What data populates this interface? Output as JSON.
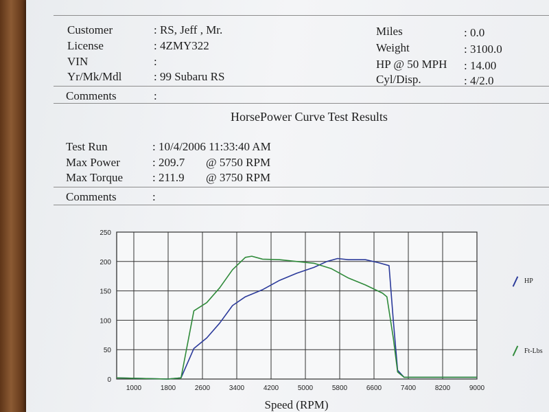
{
  "header": {
    "customer_label": "Customer",
    "customer_value": ": RS, Jeff  , Mr.",
    "license_label": "License",
    "license_value": ": 4ZMY322",
    "vin_label": "VIN",
    "vin_value": ":",
    "vehicle_label": "Yr/Mk/Mdl",
    "vehicle_value": ": 99 Subaru RS",
    "miles_label": "Miles",
    "miles_value": ": 0.0",
    "weight_label": "Weight",
    "weight_value": ": 3100.0",
    "hp50_label": "HP @ 50 MPH",
    "hp50_value": ": 14.00",
    "cyl_label": "Cyl/Disp.",
    "cyl_value": ": 4/2.0",
    "comments_label": "Comments",
    "comments_value": ":"
  },
  "results": {
    "title": "HorsePower Curve Test Results",
    "test_run_label": "Test Run",
    "test_run_value": ": 10/4/2006 11:33:40 AM",
    "max_power_label": "Max Power",
    "max_power_value": ": 209.7",
    "max_power_rpm": "@ 5750  RPM",
    "max_torque_label": "Max Torque",
    "max_torque_value": ": 211.9",
    "max_torque_rpm": "@ 3750  RPM",
    "comments_label": "Comments",
    "comments_value": ":"
  },
  "chart_data": {
    "type": "line",
    "title": "",
    "xlabel": "Speed (RPM)",
    "ylabel": "",
    "xlim": [
      600,
      9000
    ],
    "ylim": [
      0,
      250
    ],
    "x_ticks": [
      "1000",
      "1800",
      "2600",
      "3400",
      "4200",
      "5000",
      "5800",
      "6600",
      "7400",
      "8200",
      "9000"
    ],
    "y_ticks": [
      "0",
      "50",
      "100",
      "150",
      "200",
      "250"
    ],
    "grid": true,
    "legend_position": "right",
    "series": [
      {
        "name": "HP",
        "color": "#2b3a9a",
        "points": [
          [
            600,
            2
          ],
          [
            1800,
            0
          ],
          [
            2100,
            2
          ],
          [
            2400,
            52
          ],
          [
            2700,
            70
          ],
          [
            3000,
            95
          ],
          [
            3300,
            125
          ],
          [
            3600,
            140
          ],
          [
            4000,
            152
          ],
          [
            4400,
            168
          ],
          [
            4800,
            180
          ],
          [
            5200,
            190
          ],
          [
            5500,
            200
          ],
          [
            5750,
            205
          ],
          [
            6000,
            203
          ],
          [
            6400,
            203
          ],
          [
            6700,
            198
          ],
          [
            6950,
            193
          ],
          [
            7050,
            100
          ],
          [
            7150,
            15
          ],
          [
            7300,
            3
          ],
          [
            8200,
            3
          ],
          [
            9000,
            3
          ]
        ]
      },
      {
        "name": "Ft-Lbs",
        "color": "#2f8a3a",
        "points": [
          [
            600,
            2
          ],
          [
            1800,
            0
          ],
          [
            2100,
            2
          ],
          [
            2400,
            116
          ],
          [
            2700,
            130
          ],
          [
            3000,
            155
          ],
          [
            3300,
            186
          ],
          [
            3600,
            207
          ],
          [
            3750,
            209
          ],
          [
            4000,
            204
          ],
          [
            4400,
            203
          ],
          [
            4800,
            200
          ],
          [
            5200,
            197
          ],
          [
            5600,
            188
          ],
          [
            6000,
            172
          ],
          [
            6400,
            160
          ],
          [
            6800,
            146
          ],
          [
            6900,
            140
          ],
          [
            7050,
            70
          ],
          [
            7150,
            12
          ],
          [
            7300,
            3
          ],
          [
            8200,
            3
          ],
          [
            9000,
            3
          ]
        ]
      }
    ]
  }
}
